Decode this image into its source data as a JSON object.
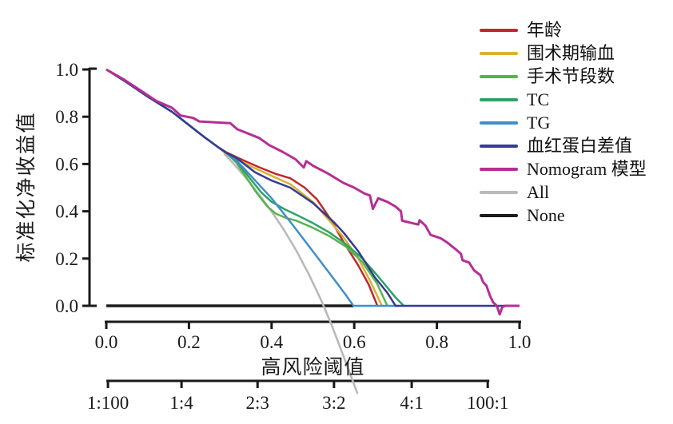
{
  "chart_data": {
    "type": "line",
    "title": "",
    "x_axis": {
      "label": "高风险阈值",
      "tick_labels": [
        "0.0",
        "0.2",
        "0.4",
        "0.6",
        "0.8",
        "1.0"
      ],
      "tick_values": [
        0,
        0.2,
        0.4,
        0.6,
        0.8,
        1.0
      ],
      "range": [
        0,
        1
      ]
    },
    "y_axis": {
      "label": "标准化净收益值",
      "tick_labels": [
        "1.0",
        "0.8",
        "0.6",
        "0.4",
        "0.2",
        "0.0"
      ],
      "tick_values": [
        1.0,
        0.8,
        0.6,
        0.4,
        0.2,
        0
      ],
      "range": [
        0,
        1
      ]
    },
    "secondary_x_axis": {
      "tick_labels": [
        "1:100",
        "1:4",
        "2:3",
        "3:2",
        "4:1",
        "100:1"
      ],
      "positions": [
        0.004,
        0.182,
        0.366,
        0.551,
        0.739,
        0.923
      ]
    },
    "grid": false,
    "legend_position": "top-right",
    "legend_order": [
      "age",
      "transfusion",
      "segments",
      "tc",
      "tg",
      "hb_diff",
      "nomogram",
      "all",
      "none"
    ],
    "series": [
      {
        "id": "none",
        "name": "None",
        "color": "#1b1b1b",
        "width": 3.4,
        "points": [
          [
            0,
            0
          ],
          [
            0.598,
            0
          ]
        ]
      },
      {
        "id": "all",
        "name": "All",
        "color": "#b9b9b9",
        "width": 2.6,
        "points": [
          [
            0.285,
            0.645
          ],
          [
            0.31,
            0.597
          ],
          [
            0.34,
            0.537
          ],
          [
            0.37,
            0.47
          ],
          [
            0.4,
            0.399
          ],
          [
            0.43,
            0.321
          ],
          [
            0.46,
            0.233
          ],
          [
            0.49,
            0.134
          ],
          [
            0.52,
            0.024
          ],
          [
            0.545,
            -0.08
          ],
          [
            0.575,
            -0.218
          ],
          [
            0.608,
            -0.372
          ]
        ]
      },
      {
        "id": "age",
        "name": "年龄",
        "color": "#bf282d",
        "width": 2.5,
        "points": [
          [
            0,
            1
          ],
          [
            0.05,
            0.945
          ],
          [
            0.1,
            0.885
          ],
          [
            0.16,
            0.82
          ],
          [
            0.2,
            0.765
          ],
          [
            0.24,
            0.71
          ],
          [
            0.27,
            0.672
          ],
          [
            0.29,
            0.65
          ],
          [
            0.33,
            0.617
          ],
          [
            0.37,
            0.586
          ],
          [
            0.41,
            0.558
          ],
          [
            0.445,
            0.54
          ],
          [
            0.48,
            0.5
          ],
          [
            0.51,
            0.45
          ],
          [
            0.545,
            0.36
          ],
          [
            0.574,
            0.27
          ],
          [
            0.61,
            0.17
          ],
          [
            0.635,
            0.09
          ],
          [
            0.656,
            0
          ]
        ]
      },
      {
        "id": "transfusion",
        "name": "围术期输血",
        "color": "#d9b32f",
        "width": 2.5,
        "points": [
          [
            0,
            1
          ],
          [
            0.05,
            0.945
          ],
          [
            0.1,
            0.885
          ],
          [
            0.16,
            0.82
          ],
          [
            0.2,
            0.765
          ],
          [
            0.24,
            0.71
          ],
          [
            0.27,
            0.672
          ],
          [
            0.29,
            0.643
          ],
          [
            0.35,
            0.59
          ],
          [
            0.4,
            0.55
          ],
          [
            0.445,
            0.515
          ],
          [
            0.5,
            0.44
          ],
          [
            0.545,
            0.35
          ],
          [
            0.574,
            0.29
          ],
          [
            0.61,
            0.2
          ],
          [
            0.64,
            0.1
          ],
          [
            0.667,
            0
          ]
        ]
      },
      {
        "id": "segments",
        "name": "手术节段数",
        "color": "#56b44c",
        "width": 2.5,
        "points": [
          [
            0,
            1
          ],
          [
            0.05,
            0.945
          ],
          [
            0.1,
            0.885
          ],
          [
            0.16,
            0.82
          ],
          [
            0.2,
            0.765
          ],
          [
            0.24,
            0.71
          ],
          [
            0.27,
            0.672
          ],
          [
            0.29,
            0.648
          ],
          [
            0.315,
            0.605
          ],
          [
            0.34,
            0.54
          ],
          [
            0.365,
            0.475
          ],
          [
            0.39,
            0.42
          ],
          [
            0.41,
            0.39
          ],
          [
            0.435,
            0.372
          ],
          [
            0.46,
            0.36
          ],
          [
            0.5,
            0.33
          ],
          [
            0.54,
            0.295
          ],
          [
            0.58,
            0.25
          ],
          [
            0.62,
            0.185
          ],
          [
            0.655,
            0.095
          ],
          [
            0.68,
            0
          ]
        ]
      },
      {
        "id": "tc",
        "name": "TC",
        "color": "#2fa167",
        "width": 2.5,
        "points": [
          [
            0,
            1
          ],
          [
            0.05,
            0.945
          ],
          [
            0.1,
            0.885
          ],
          [
            0.16,
            0.82
          ],
          [
            0.2,
            0.765
          ],
          [
            0.24,
            0.71
          ],
          [
            0.27,
            0.672
          ],
          [
            0.29,
            0.648
          ],
          [
            0.315,
            0.61
          ],
          [
            0.345,
            0.545
          ],
          [
            0.375,
            0.48
          ],
          [
            0.4,
            0.44
          ],
          [
            0.43,
            0.41
          ],
          [
            0.46,
            0.385
          ],
          [
            0.5,
            0.35
          ],
          [
            0.54,
            0.31
          ],
          [
            0.58,
            0.26
          ],
          [
            0.62,
            0.2
          ],
          [
            0.66,
            0.12
          ],
          [
            0.7,
            0.035
          ],
          [
            0.72,
            0
          ]
        ]
      },
      {
        "id": "tg",
        "name": "TG",
        "color": "#3f8fc9",
        "width": 2.5,
        "points": [
          [
            0,
            1
          ],
          [
            0.05,
            0.945
          ],
          [
            0.1,
            0.885
          ],
          [
            0.16,
            0.82
          ],
          [
            0.2,
            0.765
          ],
          [
            0.24,
            0.71
          ],
          [
            0.27,
            0.672
          ],
          [
            0.29,
            0.648
          ],
          [
            0.315,
            0.615
          ],
          [
            0.35,
            0.55
          ],
          [
            0.4,
            0.455
          ],
          [
            0.45,
            0.345
          ],
          [
            0.5,
            0.23
          ],
          [
            0.55,
            0.115
          ],
          [
            0.58,
            0.045
          ],
          [
            0.598,
            0
          ],
          [
            0.705,
            0
          ]
        ]
      },
      {
        "id": "hb_diff",
        "name": "血红蛋白差值",
        "color": "#343b97",
        "width": 2.5,
        "points": [
          [
            0,
            1
          ],
          [
            0.05,
            0.945
          ],
          [
            0.1,
            0.885
          ],
          [
            0.16,
            0.82
          ],
          [
            0.2,
            0.765
          ],
          [
            0.24,
            0.71
          ],
          [
            0.27,
            0.672
          ],
          [
            0.29,
            0.648
          ],
          [
            0.315,
            0.625
          ],
          [
            0.36,
            0.565
          ],
          [
            0.4,
            0.53
          ],
          [
            0.445,
            0.5
          ],
          [
            0.5,
            0.435
          ],
          [
            0.55,
            0.355
          ],
          [
            0.574,
            0.31
          ],
          [
            0.61,
            0.23
          ],
          [
            0.65,
            0.12
          ],
          [
            0.68,
            0.055
          ],
          [
            0.7,
            0
          ],
          [
            1.0,
            0
          ]
        ]
      },
      {
        "id": "nomogram",
        "name": "Nomogram 模型",
        "color": "#b52e94",
        "width": 3,
        "points": [
          [
            0,
            1
          ],
          [
            0.04,
            0.96
          ],
          [
            0.08,
            0.915
          ],
          [
            0.12,
            0.868
          ],
          [
            0.159,
            0.838
          ],
          [
            0.18,
            0.805
          ],
          [
            0.21,
            0.795
          ],
          [
            0.225,
            0.78
          ],
          [
            0.255,
            0.777
          ],
          [
            0.3,
            0.773
          ],
          [
            0.317,
            0.747
          ],
          [
            0.37,
            0.71
          ],
          [
            0.394,
            0.68
          ],
          [
            0.426,
            0.652
          ],
          [
            0.458,
            0.62
          ],
          [
            0.478,
            0.585
          ],
          [
            0.484,
            0.612
          ],
          [
            0.5,
            0.593
          ],
          [
            0.536,
            0.56
          ],
          [
            0.574,
            0.52
          ],
          [
            0.6,
            0.5
          ],
          [
            0.625,
            0.475
          ],
          [
            0.638,
            0.467
          ],
          [
            0.645,
            0.41
          ],
          [
            0.658,
            0.455
          ],
          [
            0.68,
            0.44
          ],
          [
            0.7,
            0.42
          ],
          [
            0.713,
            0.4
          ],
          [
            0.716,
            0.36
          ],
          [
            0.74,
            0.35
          ],
          [
            0.755,
            0.344
          ],
          [
            0.758,
            0.362
          ],
          [
            0.772,
            0.34
          ],
          [
            0.785,
            0.3
          ],
          [
            0.81,
            0.285
          ],
          [
            0.825,
            0.268
          ],
          [
            0.845,
            0.24
          ],
          [
            0.858,
            0.22
          ],
          [
            0.862,
            0.193
          ],
          [
            0.878,
            0.183
          ],
          [
            0.89,
            0.15
          ],
          [
            0.905,
            0.13
          ],
          [
            0.912,
            0.1
          ],
          [
            0.92,
            0.085
          ],
          [
            0.928,
            0.045
          ],
          [
            0.936,
            0.015
          ],
          [
            0.945,
            0
          ],
          [
            0.952,
            -0.036
          ],
          [
            0.958,
            -0.006
          ],
          [
            0.965,
            0
          ],
          [
            1.0,
            0
          ]
        ]
      }
    ]
  }
}
